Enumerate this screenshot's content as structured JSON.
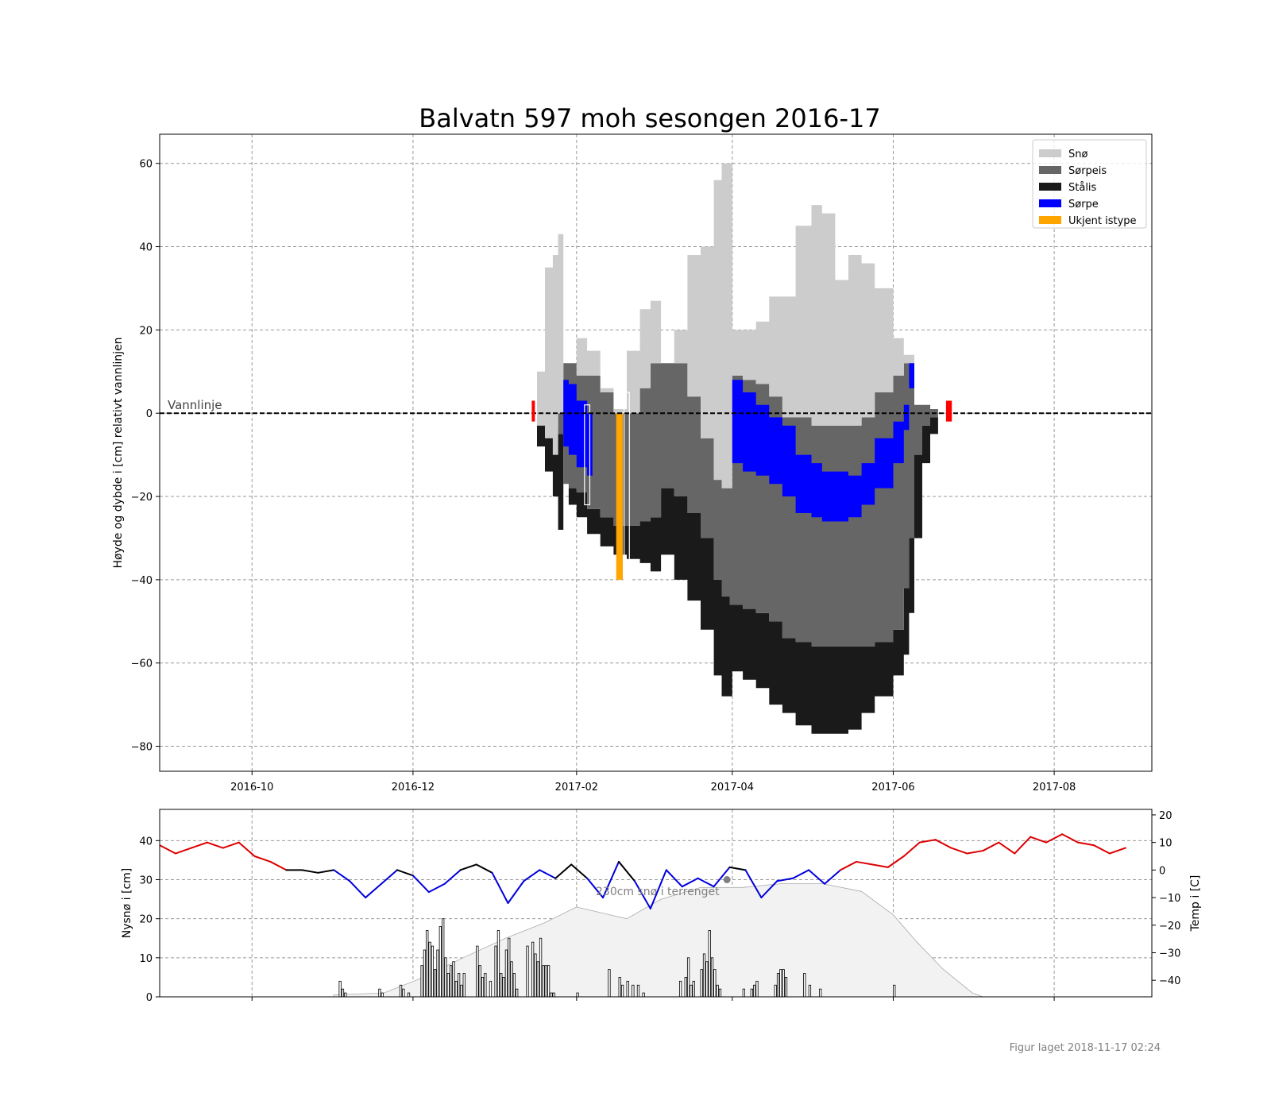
{
  "chart_data": [
    {
      "type": "area",
      "title": "Balvatn 597 moh sesongen 2016-17",
      "ylabel": "Høyde og dybde i [cm] relativt vannlinjen",
      "xlabel": "",
      "xlim": [
        "2016-08-27",
        "2017-09-07"
      ],
      "ylim": [
        -86,
        67
      ],
      "x_ticks": [
        "2016-10",
        "2016-12",
        "2017-02",
        "2017-04",
        "2017-06",
        "2017-08"
      ],
      "x_tick_dates": [
        "2016-10-01",
        "2016-12-01",
        "2017-02-01",
        "2017-04-01",
        "2017-06-01",
        "2017-08-01"
      ],
      "y_ticks": [
        60,
        40,
        20,
        0,
        -20,
        -40,
        -60,
        -80
      ],
      "y_tick_labels": [
        "60",
        "40",
        "20",
        "0",
        "−20",
        "−40",
        "−60",
        "−80"
      ],
      "grid": true,
      "legend_position": "top-right",
      "water_line_label": "Vannlinje",
      "legend": [
        {
          "name": "Snø",
          "color": "#cccccc"
        },
        {
          "name": "Sørpeis",
          "color": "#666666"
        },
        {
          "name": "Stålis",
          "color": "#1a1a1a"
        },
        {
          "name": "Sørpe",
          "color": "#0000ff"
        },
        {
          "name": "Ukjent istype",
          "color": "#ffa500"
        }
      ],
      "colors": {
        "snow": "#cccccc",
        "slush_ice": "#666666",
        "black_ice": "#1a1a1a",
        "slush": "#0000ff",
        "unknown": "#ffa500",
        "marker": "#ff0000"
      },
      "ice_cover_markers": [
        {
          "date": "2017-01-15",
          "from": 3,
          "to": -2
        },
        {
          "date": "2017-06-21",
          "from": 3,
          "to": -2
        },
        {
          "date": "2017-06-22",
          "from": 3,
          "to": -2
        }
      ],
      "layer_series": {
        "dates": [
          "2017-01-15",
          "2017-01-17",
          "2017-01-20",
          "2017-01-23",
          "2017-01-25",
          "2017-01-27",
          "2017-01-29",
          "2017-02-01",
          "2017-02-05",
          "2017-02-10",
          "2017-02-15",
          "2017-02-20",
          "2017-02-25",
          "2017-03-01",
          "2017-03-05",
          "2017-03-10",
          "2017-03-15",
          "2017-03-20",
          "2017-03-25",
          "2017-03-28",
          "2017-03-31",
          "2017-04-01",
          "2017-04-05",
          "2017-04-10",
          "2017-04-15",
          "2017-04-20",
          "2017-04-25",
          "2017-05-01",
          "2017-05-05",
          "2017-05-10",
          "2017-05-15",
          "2017-05-20",
          "2017-05-25",
          "2017-06-01",
          "2017-06-05",
          "2017-06-07",
          "2017-06-09",
          "2017-06-12",
          "2017-06-15",
          "2017-06-18"
        ],
        "snow_top": [
          0,
          10,
          35,
          38,
          43,
          12,
          12,
          18,
          15,
          6,
          1,
          15,
          25,
          27,
          12,
          20,
          38,
          40,
          56,
          60,
          60,
          20,
          20,
          22,
          28,
          28,
          45,
          50,
          48,
          32,
          38,
          36,
          30,
          18,
          14,
          14,
          2,
          2,
          1,
          0
        ],
        "snow_base": [
          0,
          -3,
          -6,
          -10,
          0,
          12,
          12,
          9,
          9,
          5,
          0,
          0,
          6,
          12,
          12,
          12,
          4,
          -6,
          -16,
          -18,
          -18,
          9,
          8,
          7,
          4,
          -1,
          -1,
          -3,
          -3,
          -3,
          -3,
          -1,
          5,
          9,
          12,
          12,
          2,
          2,
          1,
          0
        ],
        "slush_top": [
          null,
          null,
          null,
          null,
          null,
          8,
          7,
          3,
          0,
          null,
          null,
          null,
          null,
          null,
          null,
          null,
          null,
          null,
          null,
          null,
          null,
          8,
          5,
          2,
          -1,
          -3,
          -10,
          -12,
          -14,
          -14,
          -15,
          -12,
          -6,
          -2,
          2,
          12,
          null,
          null,
          null,
          null
        ],
        "slush_bottom": [
          null,
          null,
          null,
          null,
          null,
          -8,
          -10,
          -13,
          -15,
          null,
          null,
          null,
          null,
          null,
          null,
          null,
          null,
          null,
          null,
          null,
          null,
          -12,
          -14,
          -15,
          -17,
          -20,
          -24,
          -25,
          -26,
          -26,
          -25,
          -22,
          -18,
          -12,
          -4,
          6,
          null,
          null,
          null,
          null
        ],
        "sorpeis_bottom": [
          0,
          -2,
          -3,
          -4,
          -5,
          -17,
          -18,
          -19,
          -23,
          -25,
          -27,
          -27,
          -26,
          -25,
          -18,
          -20,
          -24,
          -30,
          -40,
          -44,
          -46,
          -46,
          -47,
          -48,
          -50,
          -54,
          -55,
          -56,
          -56,
          -56,
          -56,
          -56,
          -55,
          -52,
          -42,
          -30,
          -10,
          -3,
          -1,
          0
        ],
        "ice_bottom": [
          0,
          -8,
          -14,
          -20,
          -28,
          -17,
          -22,
          -25,
          -29,
          -32,
          -34,
          -35,
          -36,
          -38,
          -34,
          -40,
          -45,
          -52,
          -63,
          -68,
          -68,
          -62,
          -64,
          -66,
          -70,
          -72,
          -75,
          -77,
          -77,
          -77,
          -76,
          -72,
          -68,
          -63,
          -58,
          -48,
          -30,
          -12,
          -5,
          0
        ]
      },
      "annotations": [
        {
          "type": "unknown_bar",
          "date": "2017-02-16",
          "top": 0,
          "bottom": -40
        },
        {
          "type": "outline_bar",
          "date": "2017-02-04",
          "top": 2,
          "bottom": -22
        },
        {
          "type": "outline_bar",
          "date": "2017-02-19",
          "top": 5,
          "bottom": -40
        }
      ]
    },
    {
      "type": "bar",
      "ylabel": "Nysnø i [cm]",
      "y2label": "Temp i [C]",
      "ylim": [
        0,
        48
      ],
      "y2lim": [
        -46,
        22
      ],
      "y_ticks": [
        0,
        10,
        20,
        30,
        40
      ],
      "y_tick_labels": [
        "0",
        "10",
        "20",
        "30",
        "40"
      ],
      "y2_ticks": [
        20,
        10,
        0,
        -10,
        -20,
        -30,
        -40
      ],
      "y2_tick_labels": [
        "20",
        "10",
        "0",
        "−10",
        "−20",
        "−30",
        "−40"
      ],
      "grid": true,
      "annotation": "230cm snø i terrenget",
      "annotation_point": {
        "date": "2017-03-30",
        "value": 30
      },
      "colors": {
        "warm": "#dd0000",
        "cold": "#0000dd",
        "near_zero": "#000000",
        "snow_depth": "#f2f2f2",
        "bar_fill": "#ffffff",
        "bar_edge": "#000000",
        "annotation": "#808080"
      },
      "temp_series": {
        "dates": [
          "2016-08-27",
          "2016-09-02",
          "2016-09-08",
          "2016-09-14",
          "2016-09-20",
          "2016-09-26",
          "2016-10-02",
          "2016-10-08",
          "2016-10-14",
          "2016-10-20",
          "2016-10-26",
          "2016-11-01",
          "2016-11-07",
          "2016-11-13",
          "2016-11-19",
          "2016-11-25",
          "2016-12-01",
          "2016-12-07",
          "2016-12-13",
          "2016-12-19",
          "2016-12-25",
          "2016-12-31",
          "2017-01-06",
          "2017-01-12",
          "2017-01-18",
          "2017-01-24",
          "2017-01-30",
          "2017-02-05",
          "2017-02-11",
          "2017-02-17",
          "2017-02-23",
          "2017-03-01",
          "2017-03-07",
          "2017-03-13",
          "2017-03-19",
          "2017-03-25",
          "2017-03-31",
          "2017-04-06",
          "2017-04-12",
          "2017-04-18",
          "2017-04-24",
          "2017-04-30",
          "2017-05-06",
          "2017-05-12",
          "2017-05-18",
          "2017-05-24",
          "2017-05-30",
          "2017-06-05",
          "2017-06-11",
          "2017-06-17",
          "2017-06-23",
          "2017-06-29",
          "2017-07-05",
          "2017-07-11",
          "2017-07-17",
          "2017-07-23",
          "2017-07-29",
          "2017-08-04",
          "2017-08-10",
          "2017-08-16",
          "2017-08-22",
          "2017-08-28"
        ],
        "values": [
          9,
          6,
          8,
          10,
          8,
          10,
          5,
          3,
          0,
          0,
          -1,
          0,
          -4,
          -10,
          -5,
          0,
          -2,
          -8,
          -5,
          0,
          2,
          -1,
          -12,
          -4,
          0,
          -3,
          2,
          -3,
          -10,
          3,
          -4,
          -14,
          0,
          -6,
          -3,
          -6,
          1,
          0,
          -10,
          -4,
          -3,
          0,
          -5,
          0,
          3,
          2,
          1,
          5,
          10,
          11,
          8,
          6,
          7,
          10,
          6,
          12,
          10,
          13,
          10,
          9,
          6,
          8
        ]
      },
      "snow_depth_series": {
        "dates": [
          "2016-11-01",
          "2016-11-20",
          "2016-12-05",
          "2016-12-20",
          "2017-01-05",
          "2017-01-20",
          "2017-02-01",
          "2017-02-20",
          "2017-03-05",
          "2017-03-20",
          "2017-04-05",
          "2017-04-20",
          "2017-05-05",
          "2017-05-20",
          "2017-06-01",
          "2017-06-10",
          "2017-06-20",
          "2017-07-01",
          "2017-07-05"
        ],
        "values": [
          0.5,
          1,
          5,
          10,
          15,
          19,
          23,
          20,
          25,
          28,
          28,
          29,
          29,
          27,
          21,
          14,
          7,
          1,
          0
        ]
      },
      "new_snow_bars": {
        "dates": [
          "2016-11-03",
          "2016-11-04",
          "2016-11-05",
          "2016-11-18",
          "2016-11-19",
          "2016-11-26",
          "2016-11-27",
          "2016-11-29",
          "2016-12-04",
          "2016-12-05",
          "2016-12-06",
          "2016-12-07",
          "2016-12-08",
          "2016-12-09",
          "2016-12-10",
          "2016-12-11",
          "2016-12-12",
          "2016-12-13",
          "2016-12-14",
          "2016-12-15",
          "2016-12-16",
          "2016-12-17",
          "2016-12-18",
          "2016-12-19",
          "2016-12-20",
          "2016-12-25",
          "2016-12-26",
          "2016-12-27",
          "2016-12-28",
          "2016-12-30",
          "2017-01-01",
          "2017-01-02",
          "2017-01-03",
          "2017-01-04",
          "2017-01-05",
          "2017-01-06",
          "2017-01-07",
          "2017-01-08",
          "2017-01-09",
          "2017-01-13",
          "2017-01-15",
          "2017-01-16",
          "2017-01-17",
          "2017-01-18",
          "2017-01-19",
          "2017-01-20",
          "2017-01-21",
          "2017-01-22",
          "2017-01-23",
          "2017-02-01",
          "2017-02-13",
          "2017-02-17",
          "2017-02-18",
          "2017-02-20",
          "2017-02-22",
          "2017-02-24",
          "2017-02-26",
          "2017-03-12",
          "2017-03-14",
          "2017-03-15",
          "2017-03-16",
          "2017-03-17",
          "2017-03-20",
          "2017-03-21",
          "2017-03-22",
          "2017-03-23",
          "2017-03-24",
          "2017-03-25",
          "2017-03-26",
          "2017-03-27",
          "2017-04-05",
          "2017-04-08",
          "2017-04-09",
          "2017-04-10",
          "2017-04-17",
          "2017-04-18",
          "2017-04-19",
          "2017-04-20",
          "2017-04-21",
          "2017-04-28",
          "2017-04-30",
          "2017-05-04",
          "2017-06-01"
        ],
        "values": [
          4,
          2,
          1,
          2,
          1,
          3,
          2,
          1,
          8,
          12,
          17,
          14,
          13,
          7,
          12,
          18,
          20,
          10,
          6,
          8,
          9,
          4,
          6,
          3,
          6,
          13,
          8,
          5,
          6,
          4,
          13,
          17,
          6,
          5,
          12,
          15,
          9,
          6,
          2,
          13,
          14,
          11,
          9,
          15,
          8,
          8,
          8,
          1,
          1,
          1,
          7,
          5,
          3,
          4,
          3,
          3,
          1,
          4,
          5,
          10,
          3,
          4,
          7,
          11,
          9,
          17,
          10,
          7,
          3,
          2,
          2,
          2,
          3,
          4,
          3,
          6,
          7,
          7,
          5,
          6,
          3,
          2,
          3
        ]
      }
    }
  ],
  "footer": "Figur laget 2018-11-17 02:24"
}
